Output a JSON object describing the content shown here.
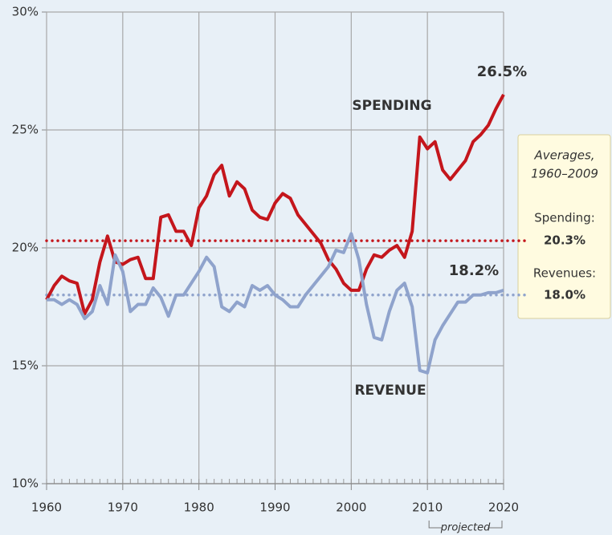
{
  "chart_data": {
    "type": "line",
    "x": [
      1960,
      1961,
      1962,
      1963,
      1964,
      1965,
      1966,
      1967,
      1968,
      1969,
      1970,
      1971,
      1972,
      1973,
      1974,
      1975,
      1976,
      1977,
      1978,
      1979,
      1980,
      1981,
      1982,
      1983,
      1984,
      1985,
      1986,
      1987,
      1988,
      1989,
      1990,
      1991,
      1992,
      1993,
      1994,
      1995,
      1996,
      1997,
      1998,
      1999,
      2000,
      2001,
      2002,
      2003,
      2004,
      2005,
      2006,
      2007,
      2008,
      2009,
      2010,
      2011,
      2012,
      2013,
      2014,
      2015,
      2016,
      2017,
      2018,
      2019,
      2020
    ],
    "series": [
      {
        "name": "SPENDING",
        "color": "#c4161c",
        "end_label": "26.5%",
        "values": [
          17.8,
          18.4,
          18.8,
          18.6,
          18.5,
          17.2,
          17.8,
          19.4,
          20.5,
          19.4,
          19.3,
          19.5,
          19.6,
          18.7,
          18.7,
          21.3,
          21.4,
          20.7,
          20.7,
          20.1,
          21.7,
          22.2,
          23.1,
          23.5,
          22.2,
          22.8,
          22.5,
          21.6,
          21.3,
          21.2,
          21.9,
          22.3,
          22.1,
          21.4,
          21.0,
          20.6,
          20.2,
          19.5,
          19.1,
          18.5,
          18.2,
          18.2,
          19.1,
          19.7,
          19.6,
          19.9,
          20.1,
          19.6,
          20.7,
          24.7,
          24.2,
          24.5,
          23.3,
          22.9,
          23.3,
          23.7,
          24.5,
          24.8,
          25.2,
          25.9,
          26.5
        ]
      },
      {
        "name": "REVENUE",
        "color": "#8fa3cc",
        "end_label": "18.2%",
        "values": [
          17.8,
          17.8,
          17.6,
          17.8,
          17.6,
          17.0,
          17.3,
          18.4,
          17.6,
          19.7,
          19.0,
          17.3,
          17.6,
          17.6,
          18.3,
          17.9,
          17.1,
          18.0,
          18.0,
          18.5,
          19.0,
          19.6,
          19.2,
          17.5,
          17.3,
          17.7,
          17.5,
          18.4,
          18.2,
          18.4,
          18.0,
          17.8,
          17.5,
          17.5,
          18.0,
          18.4,
          18.8,
          19.2,
          19.9,
          19.8,
          20.6,
          19.5,
          17.6,
          16.2,
          16.1,
          17.3,
          18.2,
          18.5,
          17.5,
          14.8,
          14.7,
          16.1,
          16.7,
          17.2,
          17.7,
          17.7,
          18.0,
          18.0,
          18.1,
          18.1,
          18.2
        ]
      }
    ],
    "xlim": [
      1960,
      2020
    ],
    "xticks": [
      1960,
      1970,
      1980,
      1990,
      2000,
      2010,
      2020
    ],
    "ylim": [
      10,
      30
    ],
    "yticks": [
      {
        "value": 10,
        "label": "10%"
      },
      {
        "value": 15,
        "label": "15%"
      },
      {
        "value": 20,
        "label": "20%"
      },
      {
        "value": 25,
        "label": "25%"
      },
      {
        "value": 30,
        "label": "30%"
      }
    ],
    "grid": true,
    "averages": {
      "title": [
        "Averages,",
        "1960–2009"
      ],
      "items": [
        {
          "name": "Spending:",
          "value": 20.3,
          "label": "20.3%",
          "color": "#c4161c"
        },
        {
          "name": "Revenues:",
          "value": 18.0,
          "label": "18.0%",
          "color": "#8fa3cc"
        }
      ]
    },
    "projected_label": "projected"
  }
}
